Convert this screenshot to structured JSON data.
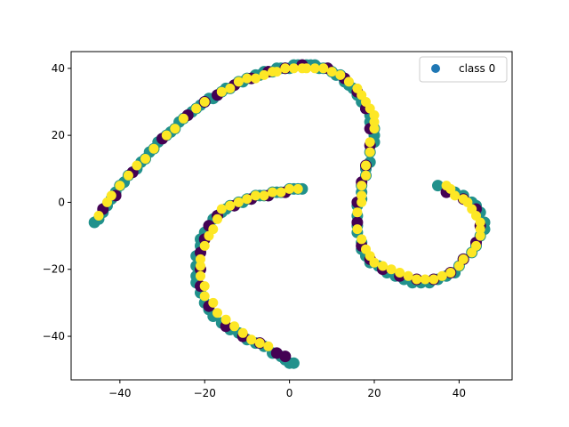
{
  "chart_data": {
    "type": "scatter",
    "title": "",
    "xlabel": "",
    "ylabel": "",
    "xlim": [
      -51.5,
      52.5
    ],
    "ylim": [
      -53,
      45
    ],
    "xticks": [
      -40,
      -20,
      0,
      20,
      40
    ],
    "yticks": [
      -40,
      -20,
      0,
      20,
      40
    ],
    "grid": false,
    "legend": {
      "placement": "top-right",
      "entries": [
        {
          "label": "class 0",
          "color": "#1f77b4"
        }
      ]
    },
    "colors": {
      "purple": "#440154",
      "teal": "#21918c",
      "yellow": "#fde725",
      "legend_marker": "#1f77b4"
    },
    "series": [
      {
        "color": "#21918c",
        "points": [
          [
            -46,
            -6
          ],
          [
            -45,
            -5
          ],
          [
            -44,
            -3
          ],
          [
            -43,
            -1
          ],
          [
            -42,
            1
          ],
          [
            -41,
            3
          ],
          [
            -40,
            5
          ],
          [
            -39,
            6
          ],
          [
            -38,
            8
          ],
          [
            -37,
            9
          ],
          [
            -36,
            10
          ],
          [
            -35,
            12
          ],
          [
            -34,
            13
          ],
          [
            -33,
            15
          ],
          [
            -32,
            16
          ],
          [
            -31,
            18
          ],
          [
            -30,
            19
          ],
          [
            -29,
            20
          ],
          [
            -28,
            21
          ],
          [
            -27,
            22
          ],
          [
            -26,
            24
          ],
          [
            -25,
            25
          ],
          [
            -24,
            26
          ],
          [
            -23,
            27
          ],
          [
            -22,
            28
          ],
          [
            -21,
            29
          ],
          [
            -20,
            30
          ],
          [
            -19,
            31
          ],
          [
            -18,
            31
          ],
          [
            -17,
            32
          ],
          [
            -16,
            33
          ],
          [
            -15,
            34
          ],
          [
            -14,
            34
          ],
          [
            -13,
            35
          ],
          [
            -12,
            36
          ],
          [
            -11,
            36
          ],
          [
            -10,
            37
          ],
          [
            -9,
            37
          ],
          [
            -8,
            38
          ],
          [
            -7,
            38
          ],
          [
            -6,
            39
          ],
          [
            -5,
            39
          ],
          [
            -4,
            39
          ],
          [
            -3,
            40
          ],
          [
            -2,
            40
          ],
          [
            -1,
            40
          ],
          [
            0,
            40
          ],
          [
            1,
            41
          ],
          [
            2,
            41
          ],
          [
            3,
            41
          ],
          [
            4,
            41
          ],
          [
            5,
            41
          ],
          [
            6,
            41
          ],
          [
            7,
            40
          ],
          [
            8,
            40
          ],
          [
            9,
            40
          ],
          [
            10,
            39
          ],
          [
            11,
            38
          ],
          [
            12,
            38
          ],
          [
            13,
            36
          ],
          [
            14,
            35
          ],
          [
            15,
            34
          ],
          [
            16,
            32
          ],
          [
            17,
            30
          ],
          [
            18,
            28
          ],
          [
            19,
            26
          ],
          [
            19,
            24
          ],
          [
            20,
            22
          ],
          [
            20,
            20
          ],
          [
            20,
            18
          ],
          [
            19,
            15
          ],
          [
            19,
            12
          ],
          [
            18,
            10
          ],
          [
            18,
            8
          ],
          [
            17,
            5
          ],
          [
            17,
            3
          ],
          [
            17,
            1
          ],
          [
            16,
            -1
          ],
          [
            16,
            -4
          ],
          [
            16,
            -7
          ],
          [
            16,
            -9
          ],
          [
            17,
            -12
          ],
          [
            17,
            -14
          ],
          [
            18,
            -16
          ],
          [
            19,
            -18
          ],
          [
            21,
            -19
          ],
          [
            23,
            -21
          ],
          [
            25,
            -22
          ],
          [
            27,
            -23
          ],
          [
            29,
            -24
          ],
          [
            31,
            -24
          ],
          [
            33,
            -24
          ],
          [
            35,
            -23
          ],
          [
            37,
            -22
          ],
          [
            39,
            -21
          ],
          [
            40,
            -19
          ],
          [
            41,
            -17
          ],
          [
            43,
            -15
          ],
          [
            44,
            -13
          ],
          [
            45,
            -10
          ],
          [
            46,
            -8
          ],
          [
            46,
            -6
          ],
          [
            45,
            -3
          ],
          [
            44,
            -1
          ],
          [
            43,
            0
          ],
          [
            41,
            2
          ],
          [
            39,
            3
          ],
          [
            37,
            4
          ],
          [
            35,
            5
          ],
          [
            3,
            4
          ],
          [
            2,
            4
          ],
          [
            1,
            4
          ],
          [
            0,
            4
          ],
          [
            -1,
            3
          ],
          [
            -2,
            3
          ],
          [
            -3,
            3
          ],
          [
            -4,
            3
          ],
          [
            -5,
            2
          ],
          [
            -6,
            2
          ],
          [
            -7,
            2
          ],
          [
            -8,
            2
          ],
          [
            -9,
            1
          ],
          [
            -10,
            1
          ],
          [
            -11,
            0
          ],
          [
            -12,
            0
          ],
          [
            -13,
            -1
          ],
          [
            -14,
            -1
          ],
          [
            -15,
            -2
          ],
          [
            -16,
            -3
          ],
          [
            -17,
            -4
          ],
          [
            -18,
            -5
          ],
          [
            -19,
            -7
          ],
          [
            -20,
            -9
          ],
          [
            -21,
            -11
          ],
          [
            -21,
            -13
          ],
          [
            -22,
            -16
          ],
          [
            -22,
            -19
          ],
          [
            -22,
            -22
          ],
          [
            -22,
            -24
          ],
          [
            -21,
            -27
          ],
          [
            -20,
            -30
          ],
          [
            -19,
            -32
          ],
          [
            -18,
            -34
          ],
          [
            -16,
            -36
          ],
          [
            -14,
            -38
          ],
          [
            -12,
            -39
          ],
          [
            -10,
            -41
          ],
          [
            -8,
            -42
          ],
          [
            -6,
            -43
          ],
          [
            -4,
            -45
          ],
          [
            -2,
            -46
          ],
          [
            -1,
            -47
          ],
          [
            0,
            -48
          ],
          [
            1,
            -48
          ]
        ]
      },
      {
        "color": "#440154",
        "points": [
          [
            -44,
            -2
          ],
          [
            -41,
            2
          ],
          [
            -37,
            9
          ],
          [
            -30,
            19
          ],
          [
            -24,
            26
          ],
          [
            -20,
            30
          ],
          [
            -17,
            32
          ],
          [
            -13,
            35
          ],
          [
            -9,
            37
          ],
          [
            -5,
            39
          ],
          [
            -1,
            40
          ],
          [
            3,
            41
          ],
          [
            9,
            40
          ],
          [
            13,
            37
          ],
          [
            16,
            33
          ],
          [
            18,
            28
          ],
          [
            19,
            22
          ],
          [
            19,
            17
          ],
          [
            18,
            11
          ],
          [
            17,
            6
          ],
          [
            16,
            0
          ],
          [
            16,
            -6
          ],
          [
            17,
            -13
          ],
          [
            19,
            -17
          ],
          [
            22,
            -20
          ],
          [
            26,
            -22
          ],
          [
            30,
            -23
          ],
          [
            34,
            -23
          ],
          [
            38,
            -21
          ],
          [
            41,
            -17
          ],
          [
            44,
            -12
          ],
          [
            45,
            -7
          ],
          [
            44,
            -2
          ],
          [
            41,
            1
          ],
          [
            37,
            3
          ],
          [
            -1,
            3
          ],
          [
            -5,
            2
          ],
          [
            -9,
            1
          ],
          [
            -13,
            -1
          ],
          [
            -17,
            -4
          ],
          [
            -19,
            -7
          ],
          [
            -20,
            -11
          ],
          [
            -21,
            -15
          ],
          [
            -21,
            -20
          ],
          [
            -21,
            -25
          ],
          [
            -19,
            -31
          ],
          [
            -15,
            -37
          ],
          [
            -11,
            -40
          ],
          [
            -7,
            -42
          ],
          [
            -3,
            -45
          ],
          [
            -1,
            -46
          ]
        ]
      },
      {
        "color": "#fde725",
        "points": [
          [
            -45,
            -4
          ],
          [
            -43,
            0
          ],
          [
            -42,
            2
          ],
          [
            -40,
            5
          ],
          [
            -38,
            8
          ],
          [
            -36,
            11
          ],
          [
            -34,
            13
          ],
          [
            -32,
            16
          ],
          [
            -29,
            20
          ],
          [
            -27,
            22
          ],
          [
            -25,
            25
          ],
          [
            -22,
            28
          ],
          [
            -20,
            30
          ],
          [
            -16,
            33
          ],
          [
            -14,
            34
          ],
          [
            -12,
            36
          ],
          [
            -10,
            37
          ],
          [
            -8,
            37
          ],
          [
            -6,
            38
          ],
          [
            -4,
            39
          ],
          [
            -3,
            39
          ],
          [
            -1,
            40
          ],
          [
            1,
            40
          ],
          [
            3,
            40
          ],
          [
            4,
            40
          ],
          [
            6,
            40
          ],
          [
            8,
            40
          ],
          [
            10,
            39
          ],
          [
            12,
            38
          ],
          [
            14,
            36
          ],
          [
            16,
            34
          ],
          [
            17,
            32
          ],
          [
            18,
            30
          ],
          [
            19,
            28
          ],
          [
            20,
            26
          ],
          [
            20,
            24
          ],
          [
            20,
            22
          ],
          [
            19,
            18
          ],
          [
            19,
            15
          ],
          [
            18,
            11
          ],
          [
            18,
            8
          ],
          [
            17,
            5
          ],
          [
            17,
            2
          ],
          [
            17,
            0
          ],
          [
            16,
            -3
          ],
          [
            16,
            -8
          ],
          [
            17,
            -11
          ],
          [
            18,
            -14
          ],
          [
            19,
            -16
          ],
          [
            20,
            -18
          ],
          [
            22,
            -19
          ],
          [
            24,
            -20
          ],
          [
            26,
            -21
          ],
          [
            28,
            -22
          ],
          [
            30,
            -23
          ],
          [
            32,
            -23
          ],
          [
            34,
            -23
          ],
          [
            36,
            -22
          ],
          [
            38,
            -21
          ],
          [
            40,
            -19
          ],
          [
            41,
            -17
          ],
          [
            43,
            -15
          ],
          [
            44,
            -13
          ],
          [
            45,
            -10
          ],
          [
            45,
            -8
          ],
          [
            45,
            -6
          ],
          [
            44,
            -4
          ],
          [
            43,
            -2
          ],
          [
            42,
            0
          ],
          [
            41,
            1
          ],
          [
            39,
            2
          ],
          [
            38,
            4
          ],
          [
            37,
            5
          ],
          [
            2,
            4
          ],
          [
            0,
            4
          ],
          [
            -2,
            3
          ],
          [
            -4,
            3
          ],
          [
            -6,
            2
          ],
          [
            -8,
            2
          ],
          [
            -10,
            1
          ],
          [
            -12,
            0
          ],
          [
            -14,
            -1
          ],
          [
            -16,
            -2
          ],
          [
            -17,
            -5
          ],
          [
            -18,
            -8
          ],
          [
            -19,
            -10
          ],
          [
            -20,
            -13
          ],
          [
            -21,
            -17
          ],
          [
            -21,
            -19
          ],
          [
            -21,
            -22
          ],
          [
            -20,
            -25
          ],
          [
            -20,
            -28
          ],
          [
            -18,
            -30
          ],
          [
            -17,
            -33
          ],
          [
            -15,
            -35
          ],
          [
            -13,
            -37
          ],
          [
            -11,
            -39
          ],
          [
            -9,
            -41
          ],
          [
            -7,
            -42
          ],
          [
            -5,
            -43
          ]
        ]
      }
    ]
  }
}
